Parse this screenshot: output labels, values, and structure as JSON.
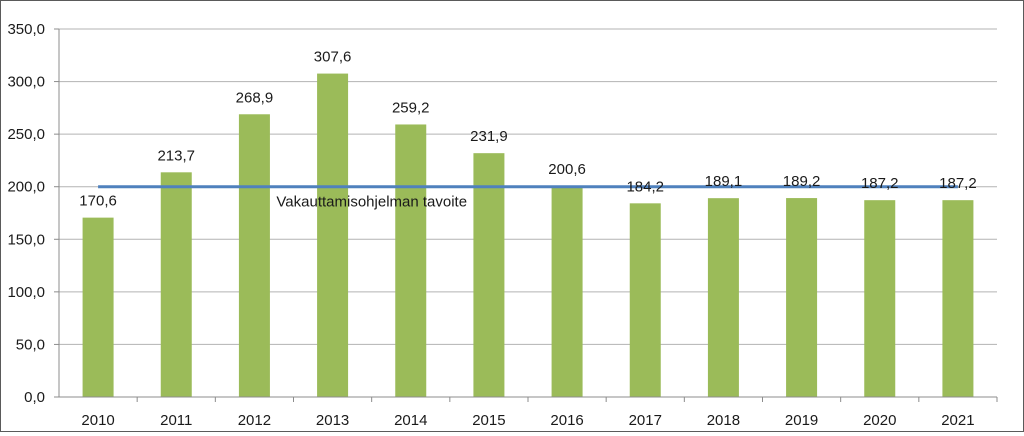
{
  "chart_data": {
    "type": "bar",
    "categories": [
      "2010",
      "2011",
      "2012",
      "2013",
      "2014",
      "2015",
      "2016",
      "2017",
      "2018",
      "2019",
      "2020",
      "2021"
    ],
    "values": [
      170.6,
      213.7,
      268.9,
      307.6,
      259.2,
      231.9,
      200.6,
      184.2,
      189.1,
      189.2,
      187.2,
      187.2
    ],
    "data_labels": [
      "170,6",
      "213,7",
      "268,9",
      "307,6",
      "259,2",
      "231,9",
      "200,6",
      "184,2",
      "189,1",
      "189,2",
      "187,2",
      "187,2"
    ],
    "ylim": [
      0,
      350
    ],
    "yticks": [
      "0,0",
      "50,0",
      "100,0",
      "150,0",
      "200,0",
      "250,0",
      "300,0",
      "350,0"
    ],
    "ytick_values": [
      0,
      50,
      100,
      150,
      200,
      250,
      300,
      350
    ],
    "grid": true,
    "target_line": {
      "value": 200,
      "label": "Vakauttamisohjelman tavoite"
    },
    "colors": {
      "bar": "#9bbb59",
      "target_line": "#4f81bd",
      "grid": "#b3b3b3",
      "axis": "#8c8c8c"
    }
  }
}
